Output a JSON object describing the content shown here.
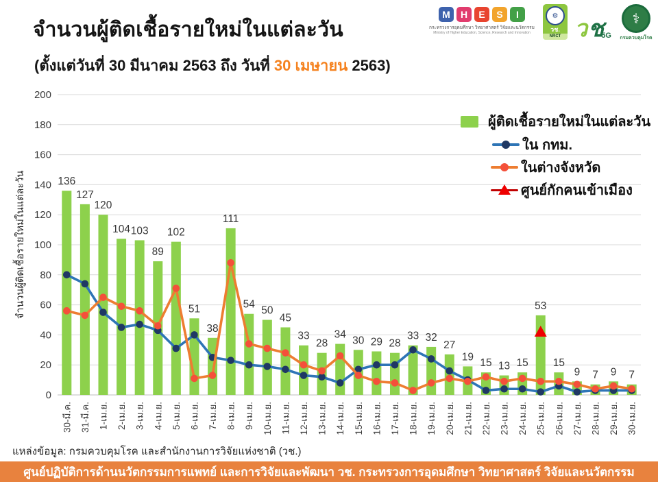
{
  "header": {
    "title": "จำนวนผู้ติดเชื้อรายใหม่ในแต่ละวัน",
    "subtitle_prefix": "(ตั้งแต่วันที่ 30 มีนาคม 2563 ถึง วันที่ ",
    "subtitle_highlight": "30 เมษายน",
    "subtitle_suffix": " 2563)"
  },
  "logos": {
    "mhesi": {
      "letters": [
        "M",
        "H",
        "E",
        "S",
        "I"
      ],
      "caption_th": "กระทรวงการอุดมศึกษา วิทยาศาสตร์ วิจัยและนวัตกรรม",
      "caption_en": "Ministry of Higher Education, Science, Research and Innovation"
    },
    "nrct": {
      "seal": "gear-seal",
      "abbr_th": "วช.",
      "abbr_en": "NRCT"
    },
    "nrct60": {
      "glyph1": "ว",
      "glyph2": "ช",
      "label": "5G"
    },
    "ddc": {
      "emblem": "caduceus",
      "caption": "กรมควบคุมโรค"
    }
  },
  "legend": {
    "bar_label": "ผู้ติดเชื้อรายใหม่ในแต่ละวัน",
    "bkk_label": "ใน กทม.",
    "provinces_label": "ในต่างจังหวัด",
    "quarantine_label": "ศูนย์กักคนเข้าเมือง"
  },
  "chart_data": {
    "type": "bar",
    "title": "จำนวนผู้ติดเชื้อรายใหม่ในแต่ละวัน",
    "xlabel": "",
    "ylabel": "จำนวนผู้ติดเชื้อรายใหม่ในแต่ละวัน",
    "ylim": [
      0,
      200
    ],
    "ytick_step": 20,
    "grid": true,
    "legend_position": "top-right-inside",
    "categories": [
      "30-มี.ค.",
      "31-มี.ค.",
      "1-เม.ย.",
      "2-เม.ย.",
      "3-เม.ย.",
      "4-เม.ย.",
      "5-เม.ย.",
      "6-เม.ย.",
      "7-เม.ย.",
      "8-เม.ย.",
      "9-เม.ย.",
      "10-เม.ย.",
      "11-เม.ย.",
      "12-เม.ย.",
      "13-เม.ย.",
      "14-เม.ย.",
      "15-เม.ย.",
      "16-เม.ย.",
      "17-เม.ย.",
      "18-เม.ย.",
      "19-เม.ย.",
      "20-เม.ย.",
      "21-เม.ย.",
      "22-เม.ย.",
      "23-เม.ย.",
      "24-เม.ย.",
      "25-เม.ย.",
      "26-เม.ย.",
      "27-เม.ย.",
      "28-เม.ย.",
      "29-เม.ย.",
      "30-เม.ย."
    ],
    "bars": {
      "name": "ผู้ติดเชื้อรายใหม่ในแต่ละวัน",
      "color": "#8DD14C",
      "values": [
        136,
        127,
        120,
        104,
        103,
        89,
        102,
        51,
        38,
        111,
        54,
        50,
        45,
        33,
        28,
        34,
        30,
        29,
        28,
        33,
        32,
        27,
        19,
        15,
        13,
        15,
        53,
        15,
        9,
        7,
        9,
        7
      ]
    },
    "series": [
      {
        "id": "bkk",
        "name": "ใน กทม.",
        "type": "line",
        "line_color": "#2E75B6",
        "marker_color": "#1F3864",
        "values": [
          80,
          74,
          55,
          45,
          47,
          43,
          31,
          40,
          25,
          23,
          20,
          19,
          17,
          13,
          12,
          8,
          17,
          20,
          20,
          30,
          24,
          16,
          10,
          3,
          4,
          4,
          2,
          6,
          2,
          3,
          3,
          3
        ]
      },
      {
        "id": "provinces",
        "name": "ในต่างจังหวัด",
        "type": "line",
        "line_color": "#ED7D31",
        "marker_color": "#F4503A",
        "values": [
          56,
          53,
          65,
          59,
          56,
          46,
          71,
          11,
          13,
          88,
          34,
          31,
          28,
          20,
          16,
          26,
          13,
          9,
          8,
          3,
          8,
          11,
          9,
          12,
          9,
          11,
          9,
          9,
          7,
          4,
          6,
          4
        ]
      },
      {
        "id": "quarantine",
        "name": "ศูนย์กักคนเข้าเมือง",
        "type": "point",
        "marker": "triangle",
        "color": "#EE0000",
        "points": [
          {
            "category": "25-เม.ย.",
            "value": 42
          }
        ]
      }
    ]
  },
  "footer": {
    "source": "แหล่งข้อมูล: กรมควบคุมโรค และสำนักงานการวิจัยแห่งชาติ (วช.)",
    "banner": "ศูนย์ปฏิบัติการด้านนวัตกรรมการแพทย์ และการวิจัยและพัฒนา วช. กระทรวงการอุดมศึกษา วิทยาศาสตร์ วิจัยและนวัตกรรม"
  },
  "colors": {
    "bar_green": "#8DD14C",
    "bkk_line": "#2E75B6",
    "bkk_dot": "#1F3864",
    "provinces_line": "#ED7D31",
    "provinces_dot": "#F4503A",
    "quarantine_red": "#EE0000",
    "subtitle_highlight": "#F5821F",
    "banner_orange": "#E8823E",
    "gridline": "#D9D9D9"
  }
}
